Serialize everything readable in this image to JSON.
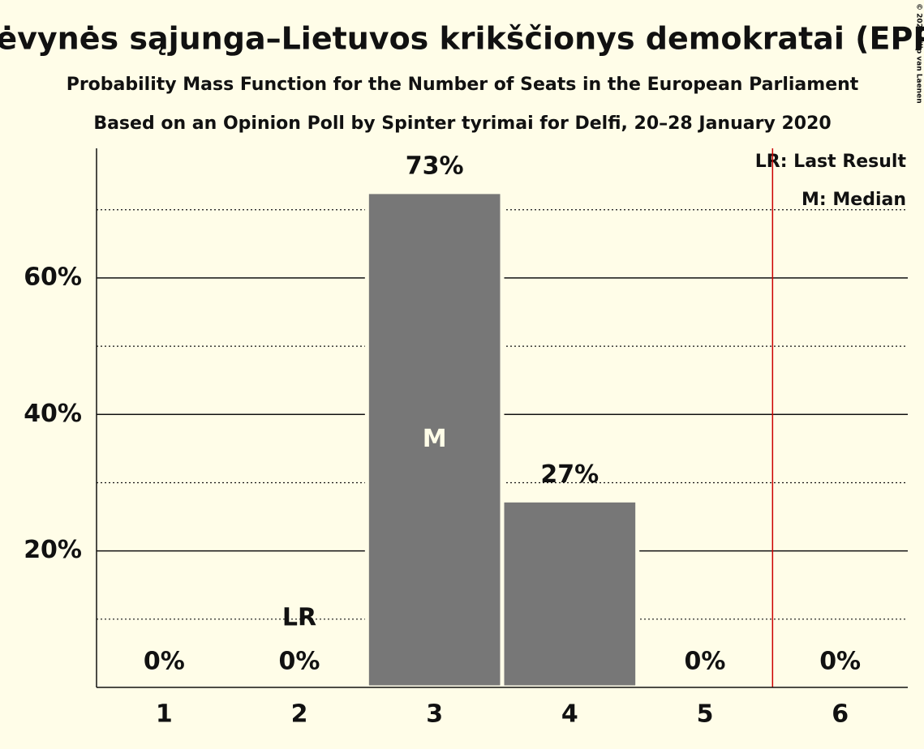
{
  "chart_data": {
    "type": "bar",
    "title": "Tėvynės sąjunga–Lietuvos krikščionys demokratai (EPP)",
    "subtitles": [
      "Probability Mass Function for the Number of Seats in the European Parliament",
      "Based on an Opinion Poll by Spinter tyrimai for Delfi, 20–28 January 2020"
    ],
    "categories": [
      "1",
      "2",
      "3",
      "4",
      "5",
      "6"
    ],
    "values": [
      0,
      0,
      72.6,
      27.4,
      0,
      0
    ],
    "value_labels": [
      "0%",
      "0%",
      "73%",
      "27%",
      "0%",
      "0%"
    ],
    "color": "#777777",
    "ylim": [
      0,
      79
    ],
    "yticks": [
      {
        "value": 20,
        "label": "20%"
      },
      {
        "value": 40,
        "label": "40%"
      },
      {
        "value": 60,
        "label": "60%"
      }
    ],
    "minor_yticks": [
      10,
      30,
      50,
      70
    ],
    "grid": true,
    "annotations": [
      {
        "text": "LR",
        "category": 1
      },
      {
        "text": "M",
        "category": 2
      }
    ],
    "vline": {
      "x": 5.5,
      "color": "#cc0000"
    },
    "legend": [
      "LR: Last Result",
      "M: Median"
    ],
    "copyright": "© 2020 Filip van Laenen"
  }
}
